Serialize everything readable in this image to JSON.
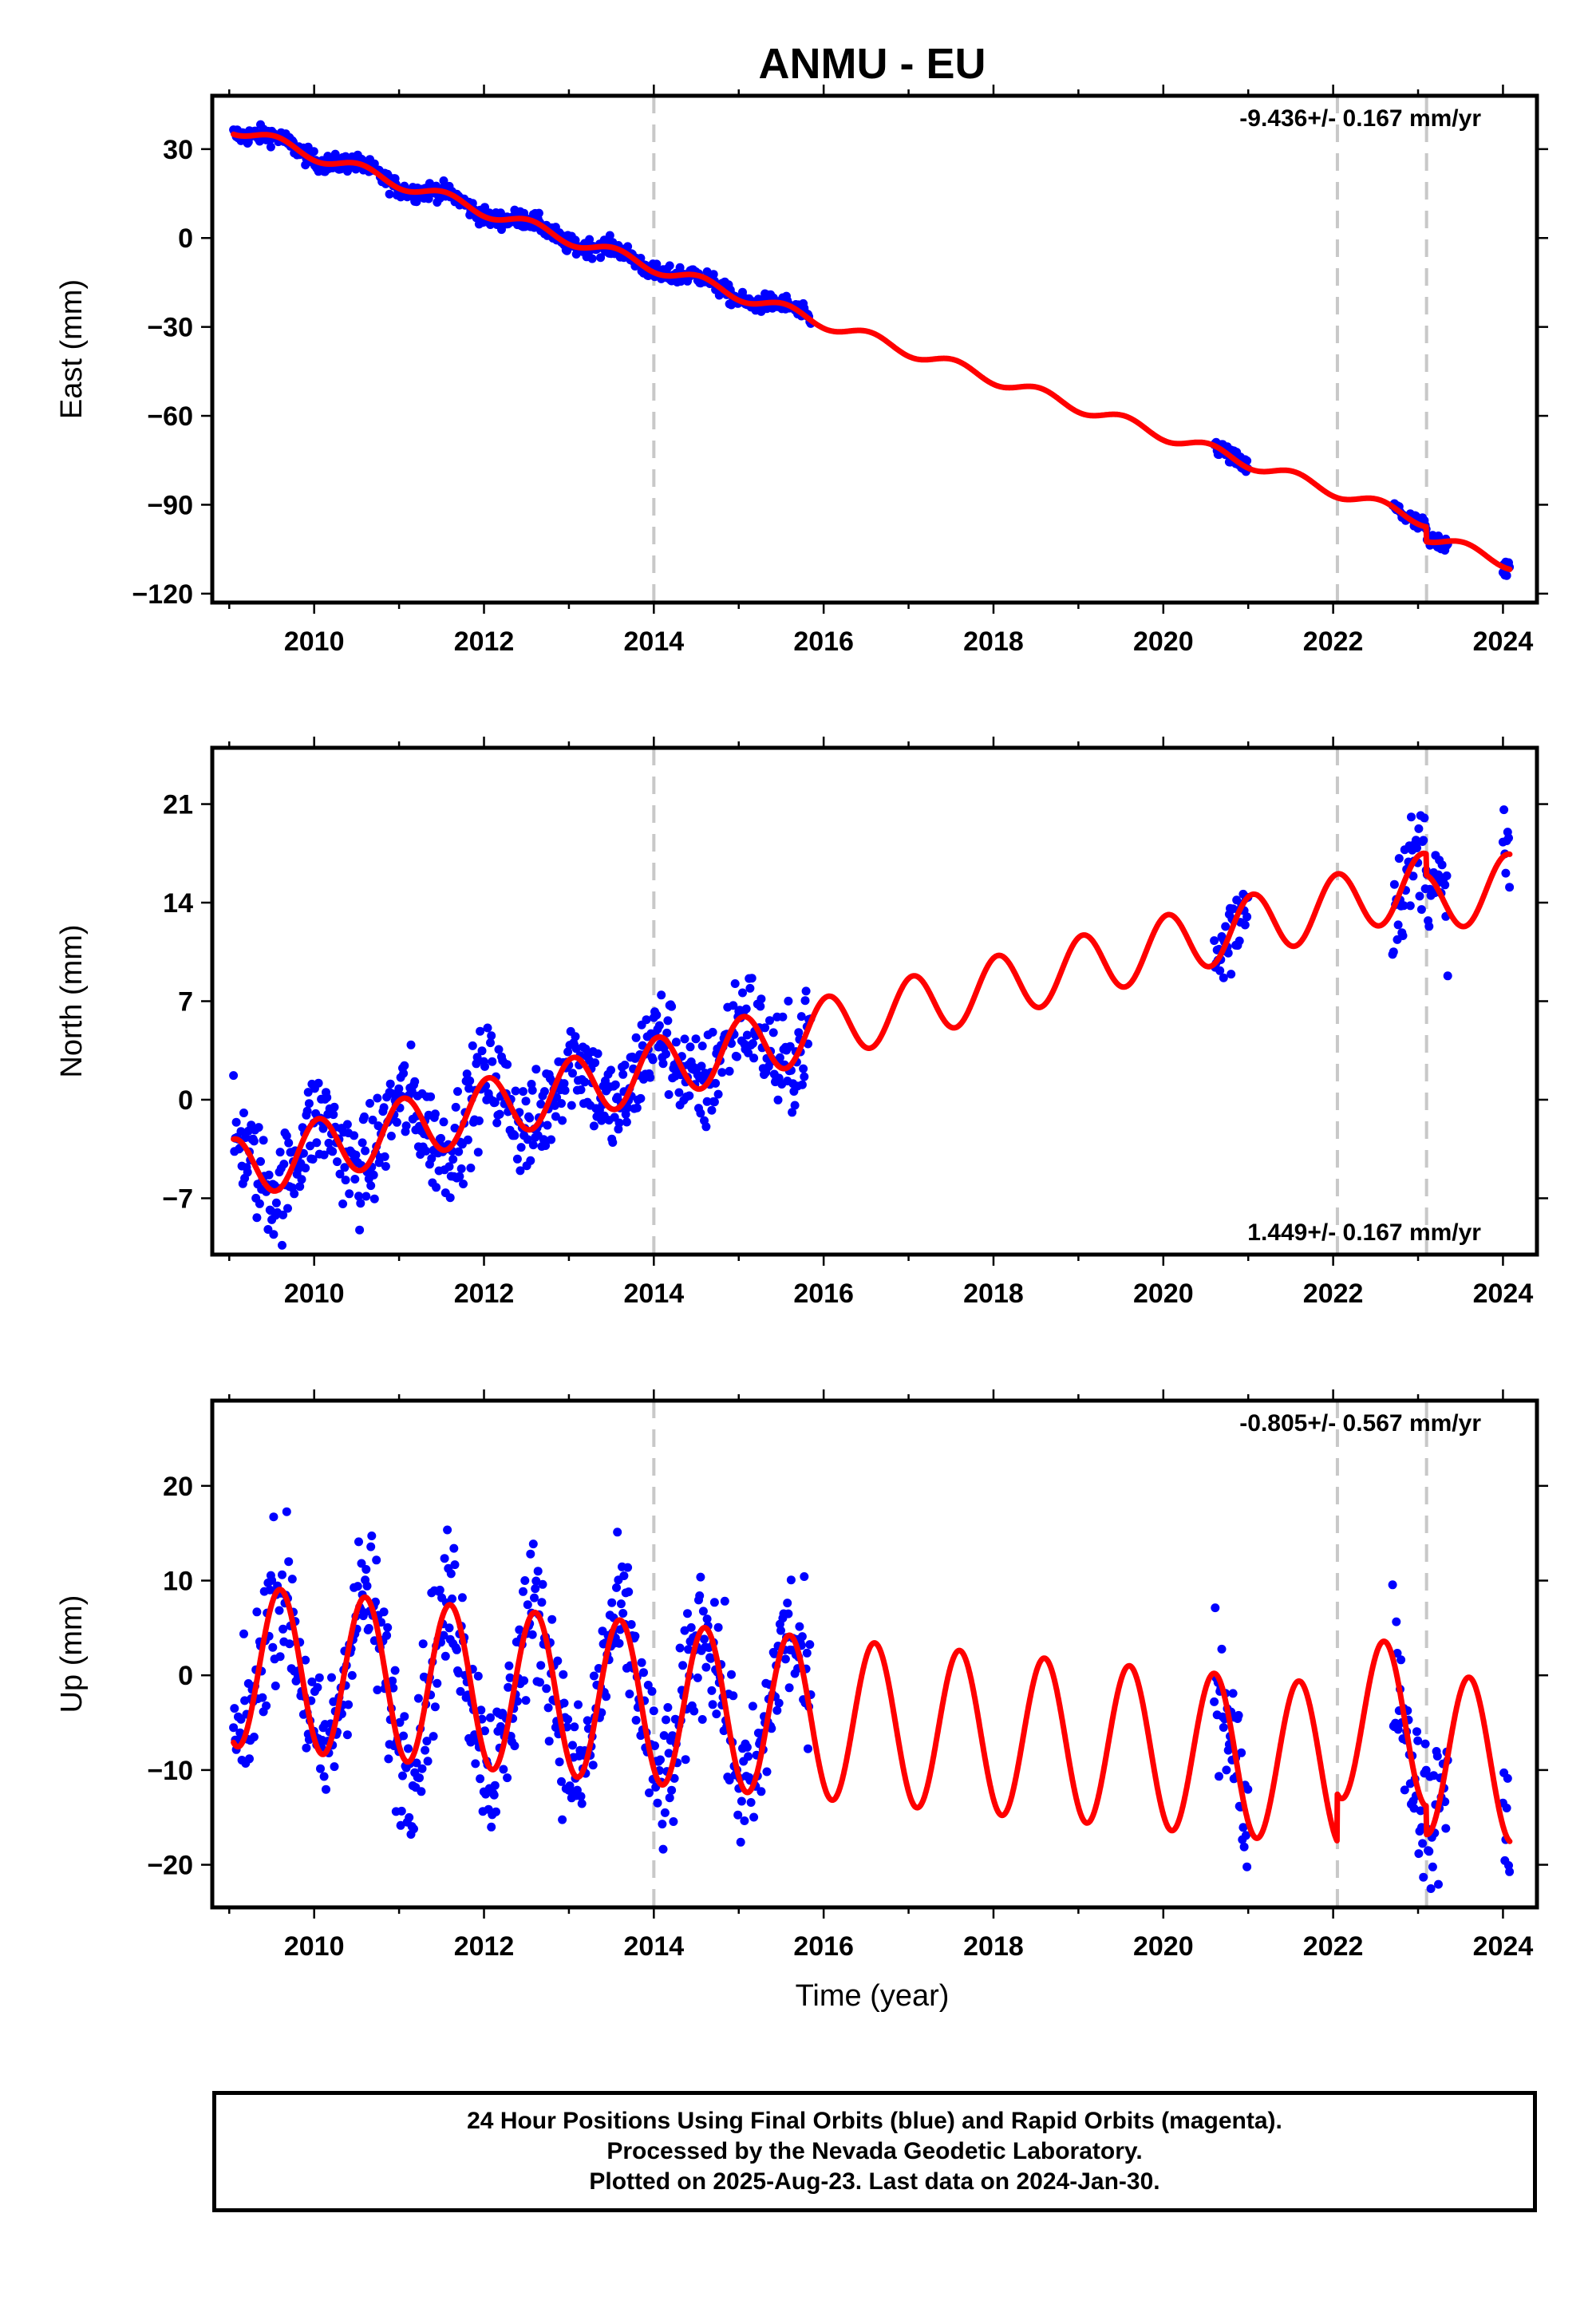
{
  "chart_data": [
    {
      "type": "scatter",
      "panel": "east",
      "title": "ANMU - EU",
      "ylabel": "East (mm)",
      "xlabel": "",
      "rate_label": "-9.436+/- 0.167 mm/yr",
      "rate_position": "top-right",
      "xlim": [
        2008.8,
        2024.4
      ],
      "ylim": [
        -123,
        48
      ],
      "xticks": [
        2010,
        2012,
        2014,
        2016,
        2018,
        2020,
        2022,
        2024
      ],
      "xtick_labels": [
        "2010",
        "2012",
        "2014",
        "2016",
        "2018",
        "2020",
        "2022",
        "2024"
      ],
      "yticks": [
        30,
        0,
        -30,
        -60,
        -90,
        -120
      ],
      "ytick_labels": [
        "30",
        "0",
        "−30",
        "−60",
        "−90",
        "−120"
      ],
      "event_lines": [
        2014.0,
        2022.05,
        2023.1
      ],
      "data_segments": [
        [
          2009.05,
          2015.85
        ],
        [
          2020.6,
          2021.0
        ],
        [
          2022.7,
          2023.35
        ],
        [
          2024.0,
          2024.08
        ]
      ],
      "series": [
        {
          "name": "",
          "color": "#0000ff",
          "style": "points",
          "model": {
            "ref_year": 2009.05,
            "intercept": 37.0,
            "rate": -9.436,
            "annual_amp": 2.0,
            "annual_phase": 2009.3,
            "steps": [
              [
                2023.1,
                -5.0
              ]
            ],
            "noise": 1.5
          }
        },
        {
          "name": "",
          "color": "#ff0000",
          "style": "line",
          "model": {
            "ref_year": 2009.05,
            "intercept": 37.0,
            "rate": -9.436,
            "annual_amp": 2.0,
            "annual_phase": 2009.3,
            "steps": [
              [
                2023.1,
                -5.0
              ]
            ]
          }
        }
      ]
    },
    {
      "type": "scatter",
      "panel": "north",
      "title": "",
      "ylabel": "North (mm)",
      "xlabel": "",
      "rate_label": "1.449+/- 0.167 mm/yr",
      "rate_position": "bottom-right",
      "xlim": [
        2008.8,
        2024.4
      ],
      "ylim": [
        -11,
        25
      ],
      "xticks": [
        2010,
        2012,
        2014,
        2016,
        2018,
        2020,
        2022,
        2024
      ],
      "xtick_labels": [
        "2010",
        "2012",
        "2014",
        "2016",
        "2018",
        "2020",
        "2022",
        "2024"
      ],
      "yticks": [
        21,
        14,
        7,
        0,
        -7
      ],
      "ytick_labels": [
        "21",
        "14",
        "7",
        "0",
        "−7"
      ],
      "event_lines": [
        2014.0,
        2022.05,
        2023.1
      ],
      "data_segments": [
        [
          2009.05,
          2015.85
        ],
        [
          2020.6,
          2021.0
        ],
        [
          2022.7,
          2023.35
        ],
        [
          2024.0,
          2024.08
        ]
      ],
      "series": [
        {
          "name": "",
          "color": "#0000ff",
          "style": "points",
          "model": {
            "ref_year": 2009.05,
            "intercept": -5.0,
            "rate": 1.449,
            "annual_amp": 2.2,
            "annual_phase": 2008.8,
            "steps": [
              [
                2023.1,
                -1.5
              ]
            ],
            "noise": 1.8
          }
        },
        {
          "name": "",
          "color": "#ff0000",
          "style": "line",
          "model": {
            "ref_year": 2009.05,
            "intercept": -5.0,
            "rate": 1.449,
            "annual_amp": 2.2,
            "annual_phase": 2008.8,
            "steps": [
              [
                2023.1,
                -1.5
              ]
            ]
          }
        }
      ]
    },
    {
      "type": "scatter",
      "panel": "up",
      "title": "",
      "ylabel": "Up (mm)",
      "xlabel": "Time (year)",
      "rate_label": "-0.805+/- 0.567 mm/yr",
      "rate_position": "top-right",
      "xlim": [
        2008.8,
        2024.4
      ],
      "ylim": [
        -24.5,
        29
      ],
      "xticks": [
        2010,
        2012,
        2014,
        2016,
        2018,
        2020,
        2022,
        2024
      ],
      "xtick_labels": [
        "2010",
        "2012",
        "2014",
        "2016",
        "2018",
        "2020",
        "2022",
        "2024"
      ],
      "yticks": [
        20,
        10,
        0,
        -10,
        -20
      ],
      "ytick_labels": [
        "20",
        "10",
        "0",
        "−10",
        "−20"
      ],
      "event_lines": [
        2014.0,
        2022.05,
        2023.1
      ],
      "data_segments": [
        [
          2009.05,
          2015.85
        ],
        [
          2020.6,
          2021.0
        ],
        [
          2022.7,
          2023.35
        ],
        [
          2024.0,
          2024.08
        ]
      ],
      "series": [
        {
          "name": "",
          "color": "#0000ff",
          "style": "points",
          "model": {
            "ref_year": 2009.05,
            "intercept": 1.0,
            "rate": -0.805,
            "annual_amp": 8.5,
            "annual_phase": 2009.35,
            "steps": [
              [
                2022.05,
                5.0
              ],
              [
                2023.1,
                -3.0
              ]
            ],
            "noise": 3.8
          }
        },
        {
          "name": "",
          "color": "#ff0000",
          "style": "line",
          "model": {
            "ref_year": 2009.05,
            "intercept": 1.0,
            "rate": -0.805,
            "annual_amp": 8.5,
            "annual_phase": 2009.35,
            "steps": [
              [
                2022.05,
                5.0
              ],
              [
                2023.1,
                -3.0
              ]
            ]
          }
        }
      ]
    }
  ],
  "footer": {
    "line1": "24 Hour Positions Using Final Orbits (blue) and Rapid Orbits (magenta).",
    "line2": "Processed by the Nevada Geodetic Laboratory.",
    "line3": "Plotted on 2025-Aug-23. Last data on 2024-Jan-30."
  }
}
